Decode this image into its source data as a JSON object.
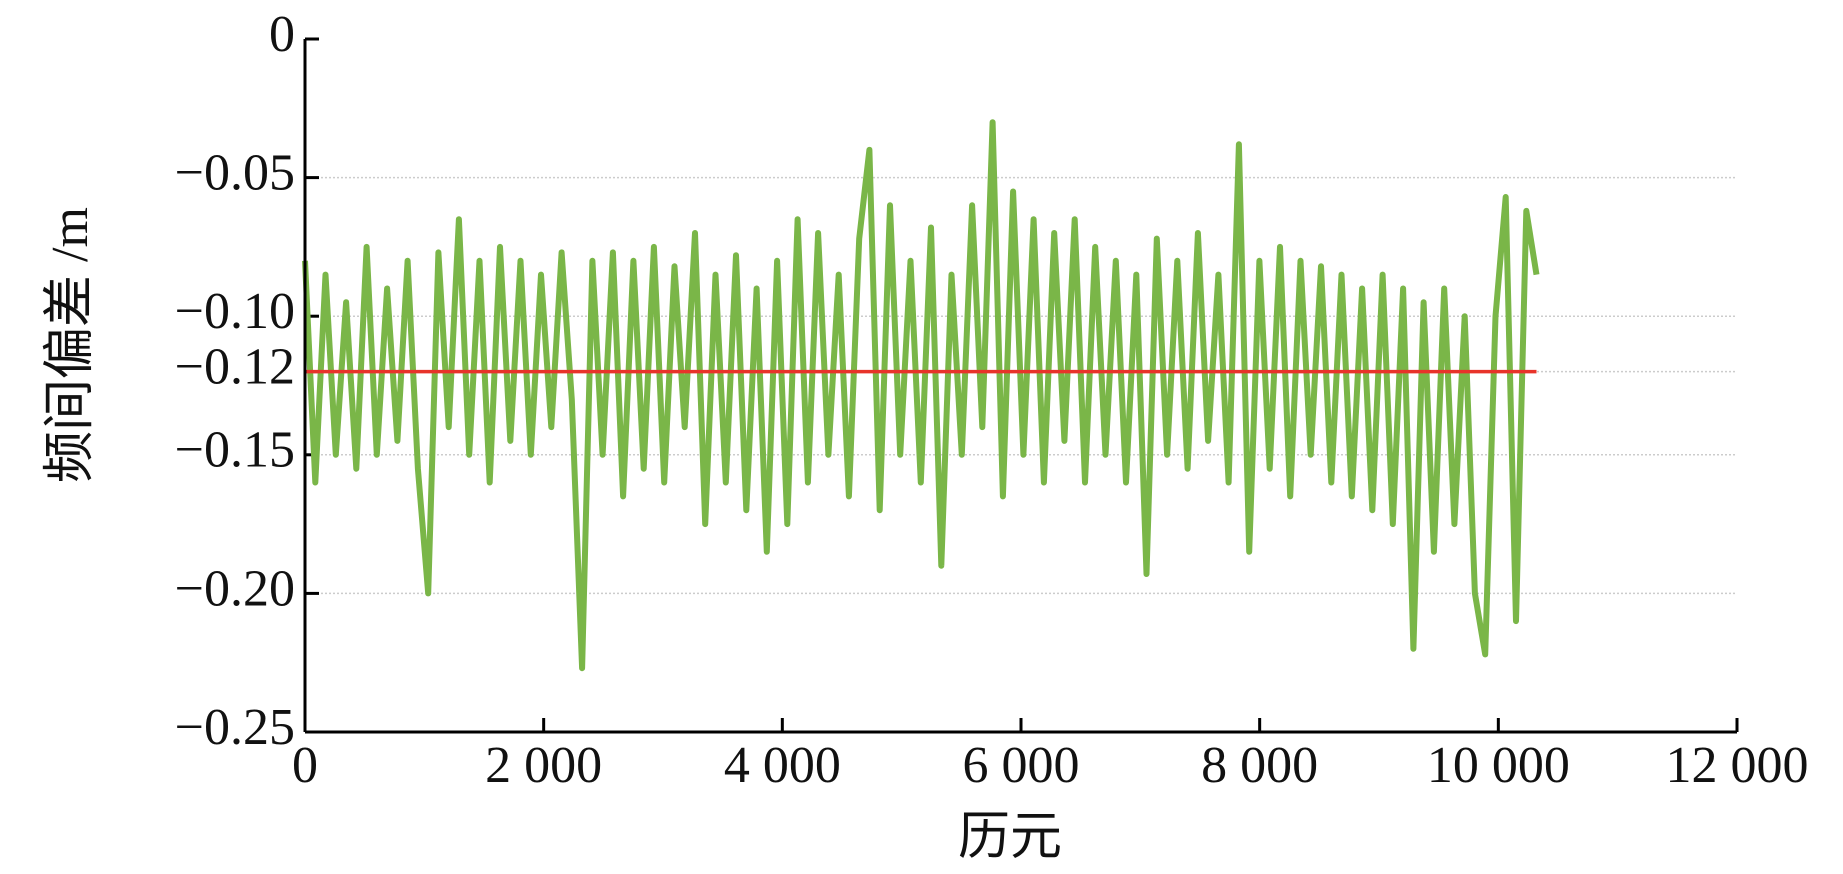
{
  "chart_data": {
    "type": "line",
    "xlabel": "历元",
    "ylabel": "频间偏差 /m",
    "xlim": [
      0,
      12000
    ],
    "xticks": [
      0,
      {
        "value": 2000,
        "label": "2 000"
      },
      {
        "value": 4000,
        "label": "4 000"
      },
      {
        "value": 6000,
        "label": "6 000"
      },
      {
        "value": 8000,
        "label": "8 000"
      },
      {
        "value": 10000,
        "label": "10 000"
      },
      {
        "value": 12000,
        "label": "12 000"
      }
    ],
    "ylim": [
      -0.25,
      0
    ],
    "yticks": [
      {
        "value": -0.25,
        "label": "−0.25"
      },
      {
        "value": -0.2,
        "label": "−0.20"
      },
      {
        "value": -0.15,
        "label": "−0.15"
      },
      {
        "value": -0.12,
        "label": "−0.12"
      },
      {
        "value": -0.1,
        "label": "−0.10"
      },
      {
        "value": -0.05,
        "label": "−0.05"
      },
      0
    ],
    "grid": true,
    "series": [
      {
        "color": "#7ab648",
        "x": [
          0,
          86,
          172,
          258,
          344,
          430,
          516,
          602,
          688,
          774,
          860,
          946,
          1032,
          1118,
          1204,
          1290,
          1376,
          1462,
          1548,
          1634,
          1720,
          1806,
          1892,
          1978,
          2064,
          2150,
          2236,
          2322,
          2408,
          2494,
          2580,
          2666,
          2752,
          2838,
          2924,
          3010,
          3096,
          3182,
          3268,
          3354,
          3440,
          3526,
          3612,
          3698,
          3784,
          3870,
          3956,
          4042,
          4128,
          4214,
          4300,
          4386,
          4472,
          4558,
          4644,
          4730,
          4816,
          4902,
          4988,
          5074,
          5160,
          5246,
          5332,
          5418,
          5504,
          5590,
          5676,
          5762,
          5848,
          5934,
          6020,
          6106,
          6192,
          6278,
          6364,
          6450,
          6536,
          6622,
          6708,
          6794,
          6880,
          6966,
          7052,
          7138,
          7224,
          7310,
          7396,
          7482,
          7568,
          7654,
          7740,
          7826,
          7912,
          7998,
          8084,
          8170,
          8256,
          8342,
          8428,
          8514,
          8600,
          8686,
          8772,
          8858,
          8944,
          9030,
          9116,
          9202,
          9288,
          9374,
          9460,
          9546,
          9632,
          9718,
          9804,
          9890,
          9976,
          10062,
          10148,
          10234,
          10320
        ],
        "values": [
          -0.08,
          -0.16,
          -0.085,
          -0.15,
          -0.095,
          -0.155,
          -0.075,
          -0.15,
          -0.09,
          -0.145,
          -0.08,
          -0.155,
          -0.2,
          -0.077,
          -0.14,
          -0.065,
          -0.15,
          -0.08,
          -0.16,
          -0.075,
          -0.145,
          -0.08,
          -0.15,
          -0.085,
          -0.14,
          -0.077,
          -0.13,
          -0.227,
          -0.08,
          -0.15,
          -0.077,
          -0.165,
          -0.08,
          -0.155,
          -0.075,
          -0.16,
          -0.082,
          -0.14,
          -0.07,
          -0.175,
          -0.085,
          -0.16,
          -0.078,
          -0.17,
          -0.09,
          -0.185,
          -0.08,
          -0.175,
          -0.065,
          -0.16,
          -0.07,
          -0.15,
          -0.085,
          -0.165,
          -0.072,
          -0.04,
          -0.17,
          -0.06,
          -0.15,
          -0.08,
          -0.16,
          -0.068,
          -0.19,
          -0.085,
          -0.15,
          -0.06,
          -0.14,
          -0.03,
          -0.165,
          -0.055,
          -0.15,
          -0.065,
          -0.16,
          -0.07,
          -0.145,
          -0.065,
          -0.16,
          -0.075,
          -0.15,
          -0.08,
          -0.16,
          -0.085,
          -0.193,
          -0.072,
          -0.15,
          -0.08,
          -0.155,
          -0.07,
          -0.145,
          -0.085,
          -0.16,
          -0.038,
          -0.185,
          -0.08,
          -0.155,
          -0.075,
          -0.165,
          -0.08,
          -0.15,
          -0.082,
          -0.16,
          -0.085,
          -0.165,
          -0.09,
          -0.17,
          -0.085,
          -0.175,
          -0.09,
          -0.22,
          -0.095,
          -0.185,
          -0.09,
          -0.175,
          -0.1,
          -0.2,
          -0.222,
          -0.1,
          -0.057,
          -0.21,
          -0.062,
          -0.085
        ]
      },
      {
        "color": "#e8332a",
        "x": [
          0,
          10320
        ],
        "values": [
          -0.12,
          -0.12
        ]
      }
    ]
  }
}
